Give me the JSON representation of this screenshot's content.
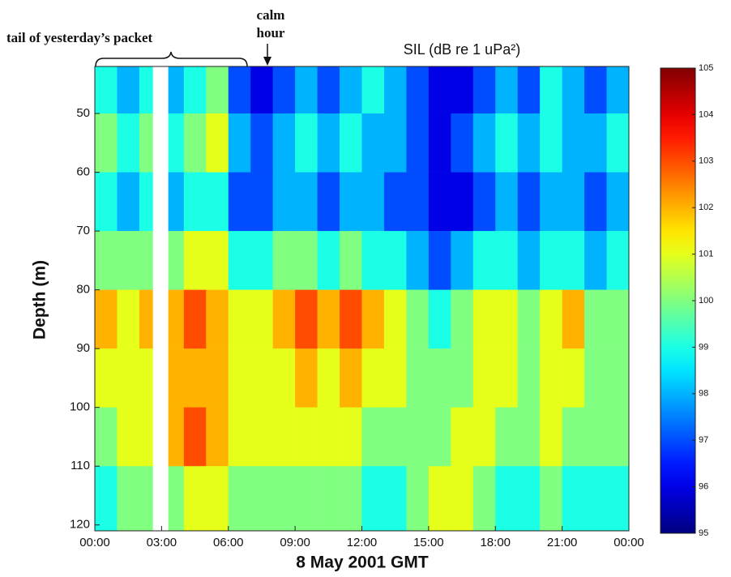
{
  "chart_data": {
    "type": "heatmap",
    "title": "SIL (dB re 1 uPa²)",
    "xlabel": "8 May 2001 GMT",
    "ylabel": "Depth (m)",
    "annotations": [
      "tail of yesterday’s packet",
      "calm",
      "hour"
    ],
    "x_bins": [
      0,
      1,
      2,
      2.6,
      3.3,
      4,
      5,
      6,
      7,
      8,
      9,
      10,
      11,
      12,
      13,
      14,
      15,
      16,
      17,
      18,
      19,
      20,
      21,
      22,
      23,
      24
    ],
    "y_bins": [
      42,
      50,
      60,
      70,
      80,
      90,
      100,
      110,
      121
    ],
    "values": [
      [
        99,
        98,
        99,
        null,
        98,
        99,
        100,
        97,
        96,
        97,
        98,
        97,
        98,
        99,
        98,
        97,
        96,
        96,
        97,
        98,
        97,
        99,
        98,
        97,
        98
      ],
      [
        100,
        99,
        100,
        null,
        99,
        100,
        101,
        98,
        97,
        98,
        99,
        98,
        99,
        98,
        98,
        97,
        96,
        97,
        98,
        99,
        98,
        99,
        98,
        98,
        99
      ],
      [
        99,
        98,
        99,
        null,
        98,
        99,
        99,
        97,
        97,
        98,
        98,
        97,
        98,
        98,
        97,
        97,
        96,
        96,
        97,
        98,
        97,
        98,
        98,
        97,
        98
      ],
      [
        100,
        100,
        100,
        null,
        100,
        101,
        101,
        99,
        99,
        100,
        100,
        99,
        100,
        99,
        99,
        98,
        97,
        98,
        99,
        99,
        98,
        99,
        99,
        98,
        99
      ],
      [
        102,
        101,
        102,
        null,
        102,
        103,
        102,
        101,
        101,
        102,
        103,
        102,
        103,
        102,
        101,
        100,
        99,
        100,
        101,
        101,
        100,
        101,
        102,
        100,
        100
      ],
      [
        101,
        101,
        101,
        null,
        102,
        102,
        102,
        101,
        101,
        101,
        102,
        101,
        102,
        101,
        101,
        100,
        100,
        100,
        101,
        101,
        100,
        101,
        101,
        100,
        100
      ],
      [
        100,
        101,
        101,
        null,
        102,
        103,
        102,
        101,
        101,
        101,
        101,
        101,
        101,
        100,
        100,
        100,
        100,
        101,
        101,
        100,
        100,
        101,
        100,
        100,
        100
      ],
      [
        99,
        100,
        100,
        null,
        100,
        101,
        101,
        100,
        100,
        100,
        100,
        100,
        100,
        99,
        99,
        100,
        101,
        101,
        100,
        99,
        99,
        100,
        99,
        99,
        99
      ]
    ],
    "xlim": [
      0,
      24
    ],
    "xticks": [
      {
        "value": 0,
        "label": "00:00"
      },
      {
        "value": 3,
        "label": "03:00"
      },
      {
        "value": 6,
        "label": "06:00"
      },
      {
        "value": 9,
        "label": "09:00"
      },
      {
        "value": 12,
        "label": "12:00"
      },
      {
        "value": 15,
        "label": "15:00"
      },
      {
        "value": 18,
        "label": "18:00"
      },
      {
        "value": 21,
        "label": "21:00"
      },
      {
        "value": 24,
        "label": "00:00"
      }
    ],
    "ylim": [
      42,
      121
    ],
    "yticks": [
      50,
      60,
      70,
      80,
      90,
      100,
      110,
      120
    ],
    "y_reversed": true,
    "colorscale": "jet",
    "zlim": [
      95,
      105
    ],
    "zticks": [
      95,
      96,
      97,
      98,
      99,
      100,
      101,
      102,
      103,
      104,
      105
    ]
  }
}
